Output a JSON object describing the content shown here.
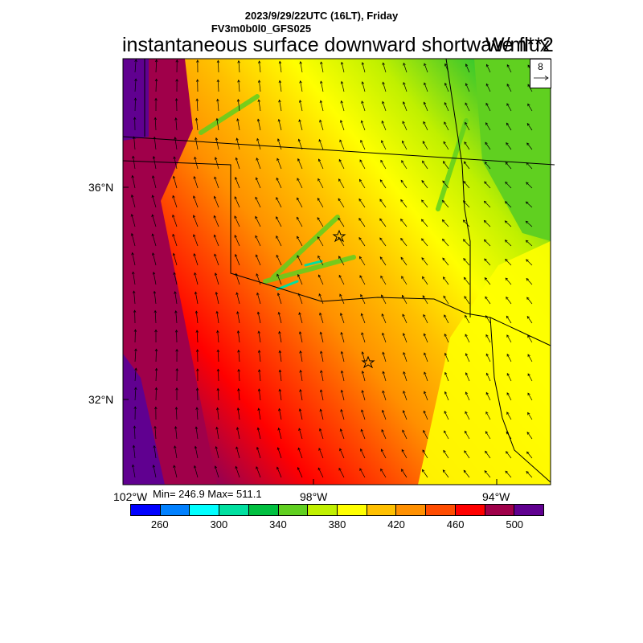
{
  "header": {
    "date_line": "2023/9/29/22UTC (16LT), Friday",
    "model_line": "FV3m0b0l0_GFS025",
    "field_title": "instantaneous surface downward shortwave flux",
    "units": "W/m**2"
  },
  "vector_key": {
    "value": "8"
  },
  "axes": {
    "lat_labels": [
      "36°N",
      "32°N"
    ],
    "lon_labels": [
      "102°W",
      "98°W",
      "94°W"
    ]
  },
  "stats": {
    "text": "Min= 246.9 Max= 511.1"
  },
  "colorbar": {
    "colors": [
      "#0000ff",
      "#0080ff",
      "#00ffff",
      "#00e0a0",
      "#00c040",
      "#60d020",
      "#c0f000",
      "#ffff00",
      "#ffc000",
      "#ff9000",
      "#ff4c00",
      "#ff0000",
      "#a0004a",
      "#600090"
    ],
    "labels": [
      "260",
      "300",
      "340",
      "380",
      "420",
      "460",
      "500"
    ]
  }
}
